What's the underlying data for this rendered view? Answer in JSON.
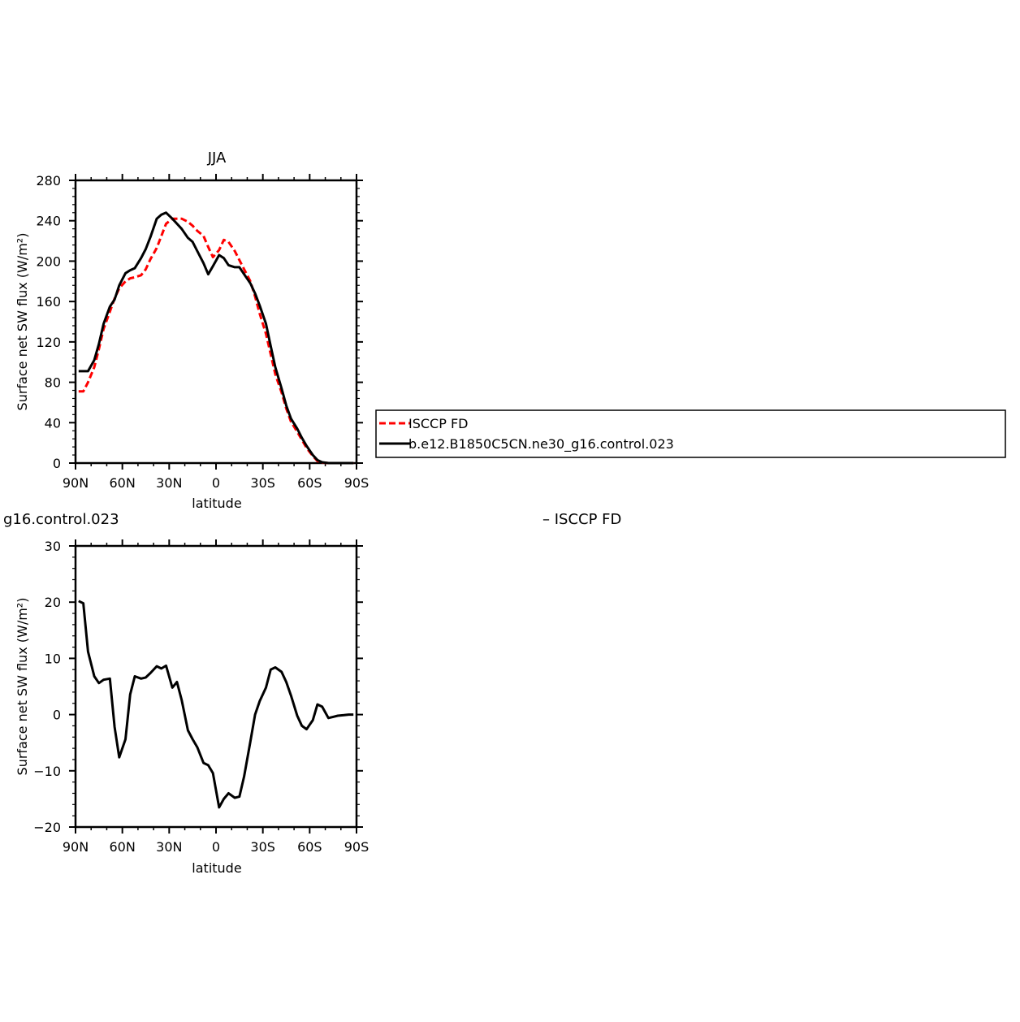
{
  "chart_data": [
    {
      "type": "line",
      "title": "JJA",
      "xlabel": "latitude",
      "ylabel": "Surface net SW flux (W/m²)",
      "xlim": [
        90,
        -90
      ],
      "ylim": [
        0,
        280
      ],
      "xticks": [
        90,
        60,
        30,
        0,
        -30,
        -60,
        -90
      ],
      "xtick_labels": [
        "90N",
        "60N",
        "30N",
        "0",
        "30S",
        "60S",
        "90S"
      ],
      "yticks": [
        0,
        40,
        80,
        120,
        160,
        200,
        240,
        280
      ],
      "ytick_labels": [
        "0",
        "40",
        "80",
        "120",
        "160",
        "200",
        "240",
        "280"
      ],
      "legend": {
        "placement": "right",
        "entries": [
          "ISCCP FD",
          "b.e12.B1850C5CN.ne30_g16.control.023"
        ]
      },
      "series": [
        {
          "name": "ISCCP FD",
          "color": "#ff0000",
          "style": "dashed",
          "x": [
            88,
            85,
            82,
            78,
            75,
            72,
            68,
            65,
            62,
            58,
            55,
            52,
            48,
            45,
            42,
            38,
            35,
            32,
            28,
            25,
            22,
            18,
            15,
            12,
            8,
            5,
            2,
            -2,
            -5,
            -8,
            -12,
            -15,
            -18,
            -22,
            -25,
            -28,
            -32,
            -35,
            -38,
            -42,
            -45,
            -48,
            -52,
            -55,
            -58,
            -62,
            -65,
            -68,
            -72,
            -75,
            -78,
            -82,
            -85,
            -88
          ],
          "values": [
            71,
            71,
            80,
            95,
            113,
            133,
            150,
            163,
            173,
            180,
            183,
            184,
            186,
            192,
            202,
            213,
            225,
            237,
            242,
            242,
            242,
            239,
            235,
            230,
            225,
            214,
            204,
            211,
            221,
            219,
            210,
            201,
            192,
            180,
            165,
            148,
            128,
            108,
            88,
            70,
            54,
            41,
            31,
            23,
            15,
            7,
            2,
            0.5,
            0,
            0,
            0,
            0,
            0,
            0
          ]
        },
        {
          "name": "b.e12.B1850C5CN.ne30_g16.control.023",
          "color": "#000000",
          "style": "solid",
          "x": [
            88,
            85,
            82,
            78,
            75,
            72,
            68,
            65,
            62,
            58,
            55,
            52,
            48,
            45,
            42,
            38,
            35,
            32,
            28,
            25,
            22,
            18,
            15,
            12,
            8,
            5,
            2,
            -2,
            -5,
            -8,
            -12,
            -15,
            -18,
            -22,
            -25,
            -28,
            -32,
            -35,
            -38,
            -42,
            -45,
            -48,
            -52,
            -55,
            -58,
            -62,
            -65,
            -68,
            -72,
            -75,
            -78,
            -82,
            -85,
            -88
          ],
          "values": [
            91,
            91,
            91,
            102,
            118,
            138,
            155,
            162,
            176,
            188,
            191,
            193,
            203,
            212,
            224,
            242,
            246,
            248,
            242,
            237,
            232,
            223,
            219,
            210,
            198,
            187,
            195,
            206,
            203,
            196,
            194,
            194,
            187,
            178,
            168,
            156,
            138,
            116,
            95,
            74,
            57,
            44,
            34,
            25,
            17,
            8,
            3,
            0.8,
            0,
            0,
            0,
            0,
            0,
            0
          ]
        }
      ]
    },
    {
      "type": "line",
      "title": "g16.control.023",
      "title2": "– ISCCP FD",
      "xlabel": "latitude",
      "ylabel": "Surface net SW flux (W/m²)",
      "xlim": [
        90,
        -90
      ],
      "ylim": [
        -20,
        30
      ],
      "xticks": [
        90,
        60,
        30,
        0,
        -30,
        -60,
        -90
      ],
      "xtick_labels": [
        "90N",
        "60N",
        "30N",
        "0",
        "30S",
        "60S",
        "90S"
      ],
      "yticks": [
        -20,
        -10,
        0,
        10,
        20,
        30
      ],
      "ytick_labels": [
        "−20",
        "−10",
        "0",
        "10",
        "20",
        "30"
      ],
      "series": [
        {
          "color": "#000000",
          "style": "solid",
          "x": [
            88,
            85,
            82,
            78,
            75,
            72,
            68,
            65,
            62,
            58,
            55,
            52,
            48,
            45,
            42,
            38,
            35,
            32,
            28,
            25,
            22,
            18,
            15,
            12,
            8,
            5,
            2,
            -2,
            -5,
            -8,
            -12,
            -15,
            -18,
            -22,
            -25,
            -28,
            -32,
            -35,
            -38,
            -42,
            -45,
            -48,
            -52,
            -55,
            -58,
            -62,
            -65,
            -68,
            -72,
            -75,
            -78,
            -82,
            -85,
            -88
          ],
          "values": [
            20.2,
            19.8,
            11.2,
            6.8,
            5.6,
            6.2,
            6.4,
            -2.2,
            -7.6,
            -4.4,
            3.6,
            6.8,
            6.4,
            6.6,
            7.4,
            8.6,
            8.2,
            8.7,
            4.8,
            5.8,
            2.6,
            -2.8,
            -4.4,
            -5.8,
            -8.6,
            -9.0,
            -10.4,
            -16.5,
            -15.0,
            -14.0,
            -14.8,
            -14.6,
            -11.0,
            -4.8,
            0.0,
            2.4,
            4.8,
            8.0,
            8.4,
            7.6,
            5.8,
            3.4,
            -0.2,
            -2.0,
            -2.6,
            -1.0,
            1.8,
            1.4,
            -0.6,
            -0.4,
            -0.2,
            -0.1,
            0,
            0
          ]
        }
      ]
    }
  ]
}
